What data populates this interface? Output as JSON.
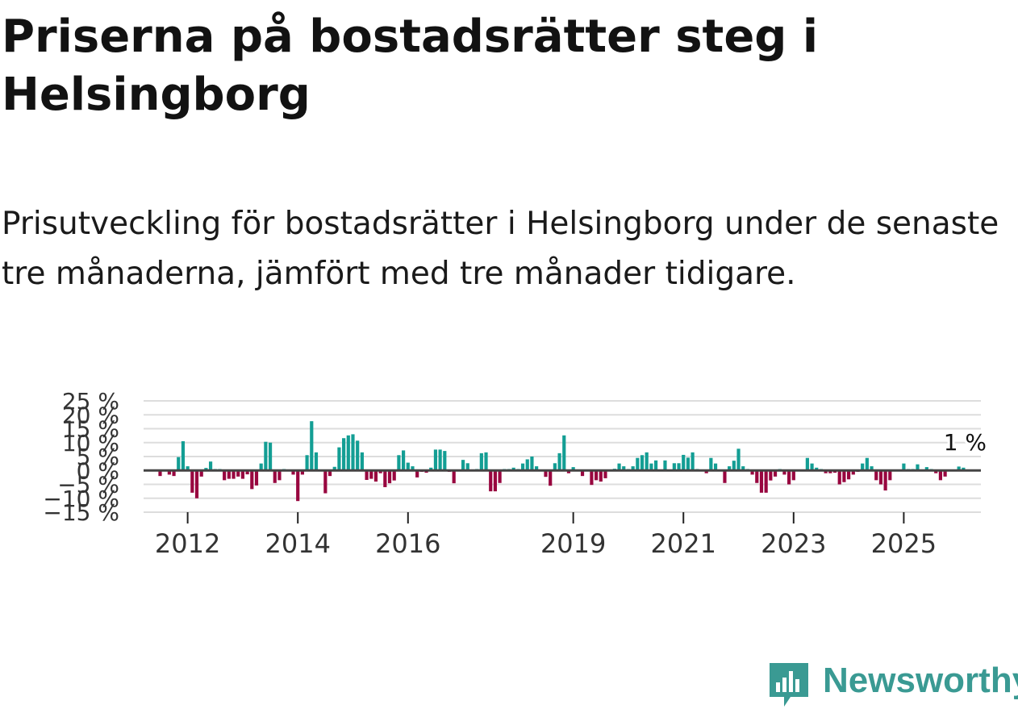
{
  "header": {
    "title": "Priserna på bostadsrätter steg i Helsingborg",
    "subtitle": "Prisutveckling för bostadsrätter i Helsingborg under de senaste tre månaderna, jämfört med tre månader tidigare."
  },
  "brand": {
    "name": "Newsworthy"
  },
  "colors": {
    "positive": "#139e94",
    "negative": "#98063f",
    "zero_line": "#444444",
    "grid": "#dddddd",
    "brand": "#3a9a93"
  },
  "chart_data": {
    "type": "bar",
    "title": "Priserna på bostadsrätter steg i Helsingborg",
    "xlabel": "",
    "ylabel": "",
    "unit": "%",
    "ylim": [
      -15,
      25
    ],
    "y_ticks": [
      25,
      20,
      15,
      10,
      5,
      0,
      -5,
      -10,
      -15
    ],
    "y_tick_labels": [
      "25 %",
      "20 %",
      "15 %",
      "10 %",
      "5 %",
      "0 %",
      "−5 %",
      "−10 %",
      "−15 %"
    ],
    "x_ticks": [
      2012,
      2014,
      2016,
      2019,
      2021,
      2023,
      2025
    ],
    "x_tick_labels": [
      "2012",
      "2014",
      "2016",
      "2019",
      "2021",
      "2023",
      "2025"
    ],
    "x_domain": [
      2011.2,
      2026.4
    ],
    "start_year": 2011.5,
    "step_years": 0.083333,
    "last_value_label": "1 %",
    "values": [
      -2,
      0,
      -1.5,
      -2,
      4.8,
      10.5,
      1.5,
      -8,
      -10,
      -2.2,
      0.9,
      3.2,
      0.5,
      0.5,
      -3.5,
      -3,
      -3,
      -2.2,
      -3,
      -1.4,
      -6.7,
      -5.4,
      2.5,
      10.3,
      10,
      -4.5,
      -3.5,
      0.5,
      0,
      -1.5,
      -11,
      -1.5,
      5.5,
      17.7,
      6.5,
      0,
      -8.2,
      -2,
      1.3,
      8.3,
      11.6,
      12.6,
      13,
      10.7,
      6.5,
      -3.4,
      -3,
      -4,
      -1,
      -6,
      -4.6,
      -3.6,
      5.5,
      7.2,
      2.8,
      1.5,
      -2.5,
      -0.5,
      -0.8,
      1,
      7.5,
      7.5,
      7,
      -0.5,
      -4.6,
      0,
      3.8,
      2.6,
      0,
      0.5,
      6.2,
      6.5,
      -7.5,
      -7.5,
      -4.5,
      0.5,
      0.5,
      1,
      0.5,
      2.5,
      4,
      5,
      1.5,
      0,
      -2.3,
      -5.5,
      2.6,
      6.2,
      12.6,
      -1,
      1.2,
      0,
      -2,
      0,
      -5.2,
      -3.5,
      -4,
      -2.8,
      0.3,
      0.6,
      2.5,
      1.5,
      0.5,
      1.5,
      4.5,
      5.5,
      6.5,
      2.5,
      3.6,
      0,
      3.6,
      0,
      2.6,
      2.6,
      5.6,
      4.6,
      6.5,
      0.5,
      0.3,
      -1,
      4.5,
      2.5,
      0,
      -4.5,
      1.5,
      3.5,
      7.8,
      1.5,
      0.5,
      -1.5,
      -4.5,
      -8,
      -8,
      -3.6,
      -2.2,
      0.5,
      -1.5,
      -5,
      -3.5,
      0,
      0,
      4.5,
      2.5,
      1,
      0.5,
      -1,
      -1,
      -0.8,
      -5,
      -4.2,
      -3.2,
      -1.5,
      -0.5,
      2.5,
      4.5,
      1.5,
      -3.5,
      -5,
      -7.2,
      -3.5,
      0,
      0,
      2.5,
      0.5,
      0.5,
      2.2,
      0,
      1.2,
      0.5,
      -1,
      -3.5,
      -2.2,
      0,
      0,
      1.4,
      1
    ]
  }
}
